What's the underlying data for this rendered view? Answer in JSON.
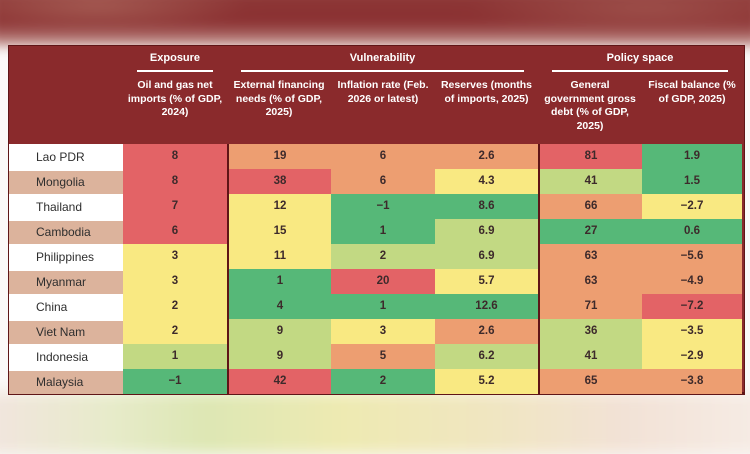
{
  "background": {
    "banner_color": "#8a2f30",
    "header_bg": "#8a2a2c",
    "border_dark": "#5f1517",
    "row_alt_color": "#dcb39c"
  },
  "palette": {
    "red": "#e36366",
    "orange": "#ed9e71",
    "yellow": "#f9e982",
    "lightgreen": "#c2d983",
    "green": "#56b878"
  },
  "chart_data": {
    "type": "heatmap",
    "column_groups": [
      {
        "label": "Exposure",
        "span": 1
      },
      {
        "label": "Vulnerability",
        "span": 3
      },
      {
        "label": "Policy space",
        "span": 2
      }
    ],
    "columns": [
      "Oil and gas net imports (% of GDP, 2024)",
      "External financing needs (% of GDP, 2025)",
      "Inflation rate (Feb. 2026 or latest)",
      "Reserves (months of imports, 2025)",
      "General government gross debt (% of GDP, 2025)",
      "Fiscal balance (% of GDP, 2025)"
    ],
    "rows": [
      {
        "country": "Lao PDR",
        "values": [
          8,
          19,
          6,
          2.6,
          81,
          1.9
        ],
        "colors": [
          "red",
          "orange",
          "orange",
          "orange",
          "red",
          "green"
        ]
      },
      {
        "country": "Mongolia",
        "values": [
          8,
          38,
          6,
          4.3,
          41,
          1.5
        ],
        "colors": [
          "red",
          "red",
          "orange",
          "yellow",
          "lightgreen",
          "green"
        ]
      },
      {
        "country": "Thailand",
        "values": [
          7,
          12,
          -1,
          8.6,
          66,
          -2.7
        ],
        "colors": [
          "red",
          "yellow",
          "green",
          "green",
          "orange",
          "yellow"
        ]
      },
      {
        "country": "Cambodia",
        "values": [
          6,
          15,
          1,
          6.9,
          27,
          0.6
        ],
        "colors": [
          "red",
          "yellow",
          "green",
          "lightgreen",
          "green",
          "green"
        ]
      },
      {
        "country": "Philippines",
        "values": [
          3,
          11,
          2,
          6.9,
          63,
          -5.6
        ],
        "colors": [
          "yellow",
          "yellow",
          "lightgreen",
          "lightgreen",
          "orange",
          "orange"
        ]
      },
      {
        "country": "Myanmar",
        "values": [
          3,
          1,
          20,
          5.7,
          63,
          -4.9
        ],
        "colors": [
          "yellow",
          "green",
          "red",
          "yellow",
          "orange",
          "orange"
        ]
      },
      {
        "country": "China",
        "values": [
          2,
          4,
          1,
          12.6,
          71,
          -7.2
        ],
        "colors": [
          "yellow",
          "green",
          "green",
          "green",
          "orange",
          "red"
        ]
      },
      {
        "country": "Viet Nam",
        "values": [
          2,
          9,
          3,
          2.6,
          36,
          -3.5
        ],
        "colors": [
          "yellow",
          "lightgreen",
          "yellow",
          "orange",
          "lightgreen",
          "yellow"
        ]
      },
      {
        "country": "Indonesia",
        "values": [
          1,
          9,
          5,
          6.2,
          41,
          -2.9
        ],
        "colors": [
          "lightgreen",
          "lightgreen",
          "orange",
          "lightgreen",
          "lightgreen",
          "yellow"
        ]
      },
      {
        "country": "Malaysia",
        "values": [
          -1,
          42,
          2,
          5.2,
          65,
          -3.8
        ],
        "colors": [
          "green",
          "red",
          "green",
          "yellow",
          "orange",
          "orange"
        ]
      }
    ]
  }
}
